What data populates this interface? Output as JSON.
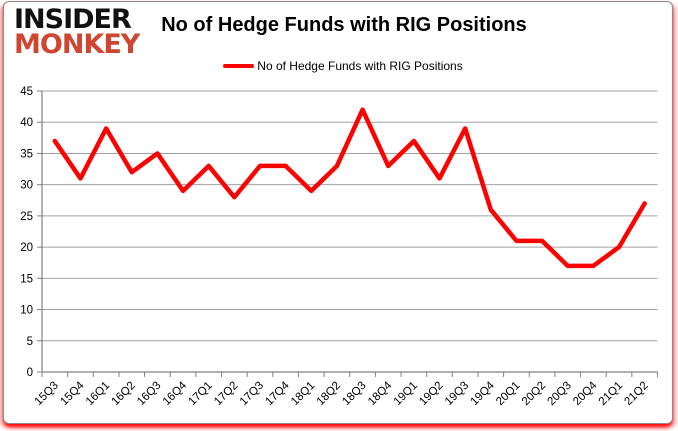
{
  "brand": {
    "logo_line1": "INSIDER",
    "logo_line2": "MONKEY",
    "logo_color_top": "#111111",
    "logo_color_bottom": "#d0452f"
  },
  "header": {
    "title": "No of Hedge Funds with RIG Positions"
  },
  "legend": {
    "label": "No of Hedge Funds with RIG Positions",
    "swatch_color": "#ff0000"
  },
  "chart_data": {
    "type": "line",
    "title": "No of Hedge Funds with RIG Positions",
    "categories": [
      "15Q3",
      "15Q4",
      "16Q1",
      "16Q2",
      "16Q3",
      "16Q4",
      "17Q1",
      "17Q2",
      "17Q3",
      "17Q4",
      "18Q1",
      "18Q2",
      "18Q3",
      "18Q4",
      "19Q1",
      "19Q2",
      "19Q3",
      "19Q4",
      "20Q1",
      "20Q2",
      "20Q3",
      "20Q4",
      "21Q1",
      "21Q2"
    ],
    "series": [
      {
        "name": "No of Hedge Funds with RIG Positions",
        "color": "#ff0000",
        "values": [
          37,
          31,
          39,
          32,
          35,
          29,
          33,
          28,
          33,
          33,
          29,
          33,
          42,
          33,
          37,
          31,
          39,
          26,
          21,
          21,
          17,
          17,
          20,
          27
        ]
      }
    ],
    "xlabel": "",
    "ylabel": "",
    "ylim": [
      0,
      45
    ],
    "ytick_step": 5,
    "yticks": [
      0,
      5,
      10,
      15,
      20,
      25,
      30,
      35,
      40,
      45
    ],
    "grid": true,
    "grid_color": "#a0a0a0",
    "axis_color": "#808080",
    "legend_position": "top",
    "x_label_rotation": -45
  }
}
